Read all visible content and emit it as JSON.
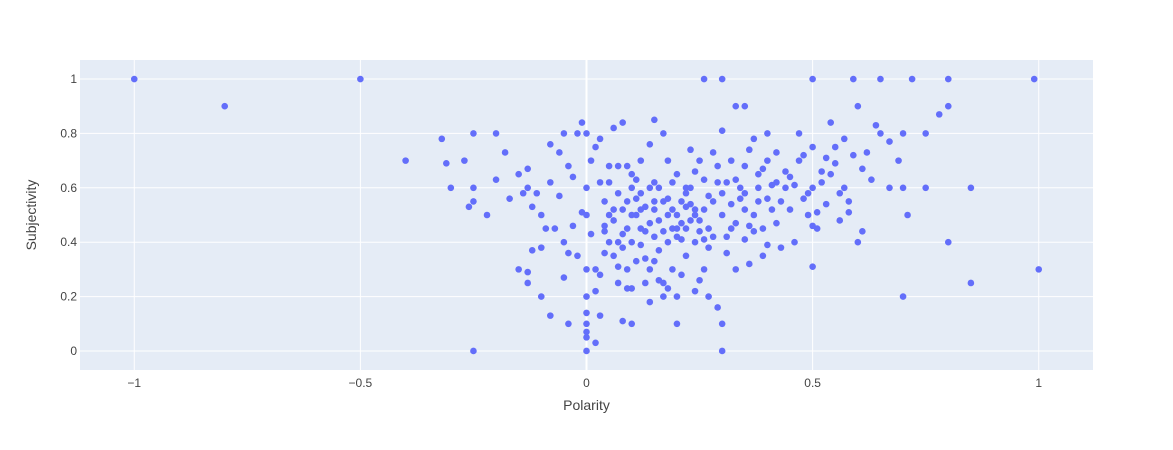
{
  "chart_data": {
    "type": "scatter",
    "xlabel": "Polarity",
    "ylabel": "Subjectivity",
    "xlim": [
      -1.12,
      1.12
    ],
    "ylim": [
      -0.07,
      1.07
    ],
    "xticks": [
      -1,
      -0.5,
      0,
      0.5,
      1
    ],
    "xtick_labels": [
      "−1",
      "−0.5",
      "0",
      "0.5",
      "1"
    ],
    "yticks": [
      0,
      0.2,
      0.4,
      0.6,
      0.8,
      1
    ],
    "ytick_labels": [
      "0",
      "0.2",
      "0.4",
      "0.6",
      "0.8",
      "1"
    ],
    "grid": true,
    "legend": "none",
    "colors": {
      "plot_bg": "#e5ecf6",
      "grid": "#ffffff",
      "marker": "#636efa"
    },
    "series": [
      {
        "points": [
          [
            -1,
            1
          ],
          [
            -0.8,
            0.9
          ],
          [
            -0.5,
            1
          ],
          [
            -0.4,
            0.7
          ],
          [
            -0.32,
            0.78
          ],
          [
            -0.31,
            0.69
          ],
          [
            -0.3,
            0.6
          ],
          [
            -0.27,
            0.7
          ],
          [
            -0.25,
            0.8
          ],
          [
            -0.25,
            0.6
          ],
          [
            -0.25,
            0.55
          ],
          [
            -0.26,
            0.53
          ],
          [
            -0.22,
            0.5
          ],
          [
            -0.2,
            0.8
          ],
          [
            -0.2,
            0.63
          ],
          [
            -0.18,
            0.73
          ],
          [
            -0.17,
            0.56
          ],
          [
            -0.15,
            0.65
          ],
          [
            -0.14,
            0.58
          ],
          [
            -0.13,
            0.6
          ],
          [
            -0.13,
            0.67
          ],
          [
            -0.12,
            0.53
          ],
          [
            -0.11,
            0.58
          ],
          [
            -0.1,
            0.5
          ],
          [
            -0.08,
            0.76
          ],
          [
            -0.06,
            0.73
          ],
          [
            -0.05,
            0.8
          ],
          [
            -0.04,
            0.68
          ],
          [
            -0.02,
            0.8
          ],
          [
            -0.01,
            0.84
          ],
          [
            0,
            0.8
          ],
          [
            0.02,
            0.75
          ],
          [
            0.01,
            0.7
          ],
          [
            0.03,
            0.62
          ],
          [
            0.05,
            0.62
          ],
          [
            0.04,
            0.55
          ],
          [
            0.06,
            0.82
          ],
          [
            0.08,
            0.84
          ],
          [
            0.09,
            0.68
          ],
          [
            0.1,
            0.65
          ],
          [
            0.11,
            0.56
          ],
          [
            0.12,
            0.7
          ],
          [
            0.14,
            0.76
          ],
          [
            0.15,
            0.85
          ],
          [
            0.17,
            0.8
          ],
          [
            -0.15,
            0.3
          ],
          [
            -0.13,
            0.29
          ],
          [
            -0.13,
            0.25
          ],
          [
            -0.12,
            0.37
          ],
          [
            -0.1,
            0.38
          ],
          [
            -0.1,
            0.2
          ],
          [
            -0.08,
            0.13
          ],
          [
            -0.07,
            0.45
          ],
          [
            -0.05,
            0.4
          ],
          [
            -0.05,
            0.27
          ],
          [
            -0.04,
            0.1
          ],
          [
            -0.03,
            0.46
          ],
          [
            -0.02,
            0.35
          ],
          [
            -0.01,
            0.51
          ],
          [
            0,
            0.5
          ],
          [
            0,
            0.3
          ],
          [
            0,
            0.2
          ],
          [
            0,
            0.14
          ],
          [
            0,
            0.1
          ],
          [
            0,
            0.07
          ],
          [
            0,
            0.05
          ],
          [
            0,
            0
          ],
          [
            0.02,
            0.03
          ],
          [
            0.03,
            0.13
          ],
          [
            0.01,
            0.43
          ],
          [
            0.02,
            0.3
          ],
          [
            0.03,
            0.28
          ],
          [
            0.04,
            0.46
          ],
          [
            0.05,
            0.5
          ],
          [
            0.06,
            0.48
          ],
          [
            0.07,
            0.4
          ],
          [
            0.07,
            0.31
          ],
          [
            0.08,
            0.52
          ],
          [
            0.09,
            0.45
          ],
          [
            0.1,
            0.4
          ],
          [
            0.1,
            0.23
          ],
          [
            0.1,
            0.1
          ],
          [
            0.08,
            0.11
          ],
          [
            0.11,
            0.5
          ],
          [
            0.12,
            0.45
          ],
          [
            0.12,
            0.58
          ],
          [
            0.13,
            0.53
          ],
          [
            0.13,
            0.34
          ],
          [
            0.14,
            0.3
          ],
          [
            0.15,
            0.42
          ],
          [
            0.15,
            0.52
          ],
          [
            0.16,
            0.48
          ],
          [
            0.16,
            0.6
          ],
          [
            0.17,
            0.2
          ],
          [
            0.17,
            0.25
          ],
          [
            0.18,
            0.4
          ],
          [
            0.18,
            0.56
          ],
          [
            0.19,
            0.45
          ],
          [
            0.19,
            0.3
          ],
          [
            0.2,
            0.5
          ],
          [
            0.2,
            0.2
          ],
          [
            0.2,
            0.1
          ],
          [
            0.21,
            0.41
          ],
          [
            0.21,
            0.55
          ],
          [
            0.22,
            0.53
          ],
          [
            0.22,
            0.45
          ],
          [
            0.22,
            0.35
          ],
          [
            0.23,
            0.6
          ],
          [
            0.23,
            0.48
          ],
          [
            0.24,
            0.52
          ],
          [
            0.24,
            0.66
          ],
          [
            0.25,
            0.7
          ],
          [
            0.25,
            0.44
          ],
          [
            0.25,
            0.26
          ],
          [
            0.26,
            0.63
          ],
          [
            0.26,
            0.41
          ],
          [
            0.27,
            0.2
          ],
          [
            0.27,
            0.38
          ],
          [
            0.28,
            0.55
          ],
          [
            0.29,
            0.68
          ],
          [
            0.3,
            0.81
          ],
          [
            0.3,
            0.5
          ],
          [
            0.31,
            0.42
          ],
          [
            0.31,
            0.62
          ],
          [
            0.32,
            0.54
          ],
          [
            0.33,
            0.47
          ],
          [
            0.33,
            0.3
          ],
          [
            0.34,
            0.56
          ],
          [
            0.35,
            0.68
          ],
          [
            0.35,
            0.41
          ],
          [
            0.36,
            0.32
          ],
          [
            0.37,
            0.78
          ],
          [
            0.37,
            0.5
          ],
          [
            0.38,
            0.65
          ],
          [
            0.38,
            0.6
          ],
          [
            0.39,
            0.45
          ],
          [
            0.4,
            0.7
          ],
          [
            0.4,
            0.8
          ],
          [
            0.4,
            0.39
          ],
          [
            0.41,
            0.52
          ],
          [
            0.42,
            0.62
          ],
          [
            0.42,
            0.73
          ],
          [
            0.43,
            0.38
          ],
          [
            0.44,
            0.6
          ],
          [
            0.45,
            0.64
          ],
          [
            0.46,
            0.4
          ],
          [
            0.47,
            0.8
          ],
          [
            0.48,
            0.56
          ],
          [
            0.49,
            0.5
          ],
          [
            0.5,
            1
          ],
          [
            0.5,
            0.75
          ],
          [
            0.5,
            0.6
          ],
          [
            0.5,
            0.31
          ],
          [
            0.51,
            0.45
          ],
          [
            0.52,
            0.66
          ],
          [
            0.53,
            0.71
          ],
          [
            0.53,
            0.54
          ],
          [
            0.54,
            0.84
          ],
          [
            0.55,
            0.69
          ],
          [
            0.55,
            0.75
          ],
          [
            0.56,
            0.48
          ],
          [
            0.57,
            0.6
          ],
          [
            0.58,
            0.55
          ],
          [
            0.59,
            0.72
          ],
          [
            0.6,
            0.4
          ],
          [
            0.6,
            0.9
          ],
          [
            0.61,
            0.67
          ],
          [
            0.61,
            0.44
          ],
          [
            0.62,
            0.73
          ],
          [
            0.63,
            0.63
          ],
          [
            0.64,
            0.83
          ],
          [
            0.65,
            1
          ],
          [
            0.65,
            0.8
          ],
          [
            0.67,
            0.77
          ],
          [
            0.67,
            0.6
          ],
          [
            0.69,
            0.7
          ],
          [
            0.7,
            0.8
          ],
          [
            0.7,
            0.6
          ],
          [
            0.71,
            0.5
          ],
          [
            0.7,
            0.2
          ],
          [
            0.72,
            1
          ],
          [
            0.75,
            0.8
          ],
          [
            0.75,
            0.6
          ],
          [
            0.78,
            0.87
          ],
          [
            0.8,
            1
          ],
          [
            0.8,
            0.9
          ],
          [
            0.8,
            0.4
          ],
          [
            0.85,
            0.6
          ],
          [
            0.85,
            0.25
          ],
          [
            0.99,
            1
          ],
          [
            1,
            0.3
          ],
          [
            0.26,
            1
          ],
          [
            0.3,
            1
          ],
          [
            0.33,
            0.9
          ],
          [
            0.35,
            0.9
          ],
          [
            0.59,
            1
          ],
          [
            0.3,
            0.1
          ],
          [
            0.3,
            0
          ],
          [
            -0.25,
            0
          ],
          [
            0,
            0.6
          ],
          [
            0.05,
            0.4
          ],
          [
            0.1,
            0.6
          ],
          [
            0.15,
            0.55
          ],
          [
            0.2,
            0.45
          ],
          [
            0.18,
            0.7
          ],
          [
            0.23,
            0.74
          ],
          [
            0.28,
            0.73
          ],
          [
            0.32,
            0.7
          ],
          [
            0.4,
            0.56
          ],
          [
            0.45,
            0.52
          ],
          [
            0.35,
            0.58
          ],
          [
            0.36,
            0.46
          ],
          [
            0.14,
            0.47
          ],
          [
            0.12,
            0.39
          ],
          [
            0.08,
            0.43
          ],
          [
            0.06,
            0.52
          ],
          [
            0.04,
            0.44
          ],
          [
            0.16,
            0.37
          ],
          [
            0.24,
            0.4
          ],
          [
            0.27,
            0.45
          ],
          [
            0.29,
            0.62
          ],
          [
            0.31,
            0.36
          ],
          [
            0.26,
            0.3
          ],
          [
            0.21,
            0.28
          ],
          [
            0.19,
            0.62
          ],
          [
            0.11,
            0.63
          ],
          [
            0.09,
            0.3
          ],
          [
            0.13,
            0.25
          ],
          [
            0.22,
            0.6
          ],
          [
            0.24,
            0.5
          ],
          [
            0.2,
            0.42
          ],
          [
            0.17,
            0.44
          ],
          [
            0.1,
            0.5
          ],
          [
            0.07,
            0.68
          ],
          [
            0.15,
            0.62
          ],
          [
            0.33,
            0.63
          ],
          [
            0.38,
            0.55
          ],
          [
            0.42,
            0.47
          ],
          [
            0.44,
            0.66
          ],
          [
            0.48,
            0.72
          ],
          [
            0.52,
            0.62
          ],
          [
            0.56,
            0.58
          ],
          [
            0.58,
            0.51
          ],
          [
            0.5,
            0.46
          ],
          [
            0.46,
            0.61
          ],
          [
            0.39,
            0.67
          ],
          [
            0.36,
            0.74
          ],
          [
            0.34,
            0.6
          ],
          [
            0.27,
            0.57
          ],
          [
            0.25,
            0.48
          ],
          [
            0.23,
            0.54
          ],
          [
            0.21,
            0.47
          ],
          [
            0.19,
            0.52
          ],
          [
            0.17,
            0.55
          ],
          [
            0.14,
            0.6
          ],
          [
            0.12,
            0.52
          ],
          [
            0.09,
            0.55
          ],
          [
            0.07,
            0.58
          ],
          [
            0.05,
            0.68
          ],
          [
            0.03,
            0.78
          ],
          [
            0.06,
            0.35
          ],
          [
            0.08,
            0.38
          ],
          [
            0.13,
            0.44
          ],
          [
            0.15,
            0.33
          ],
          [
            0.18,
            0.5
          ],
          [
            0.2,
            0.65
          ],
          [
            0.22,
            0.58
          ],
          [
            0.26,
            0.52
          ],
          [
            0.28,
            0.42
          ],
          [
            0.3,
            0.58
          ],
          [
            0.32,
            0.45
          ],
          [
            0.35,
            0.52
          ],
          [
            0.37,
            0.44
          ],
          [
            0.39,
            0.35
          ],
          [
            0.41,
            0.61
          ],
          [
            0.43,
            0.55
          ],
          [
            0.47,
            0.7
          ],
          [
            0.49,
            0.58
          ],
          [
            0.51,
            0.51
          ],
          [
            0.54,
            0.65
          ],
          [
            0.57,
            0.78
          ],
          [
            -0.06,
            0.57
          ],
          [
            -0.03,
            0.64
          ],
          [
            -0.08,
            0.62
          ],
          [
            -0.09,
            0.45
          ],
          [
            -0.04,
            0.36
          ],
          [
            0.02,
            0.22
          ],
          [
            0.09,
            0.23
          ],
          [
            0.14,
            0.18
          ],
          [
            0.18,
            0.23
          ],
          [
            0.24,
            0.22
          ],
          [
            0.29,
            0.16
          ],
          [
            0.16,
            0.26
          ],
          [
            0.11,
            0.33
          ],
          [
            0.07,
            0.25
          ],
          [
            0.04,
            0.36
          ]
        ]
      }
    ]
  }
}
